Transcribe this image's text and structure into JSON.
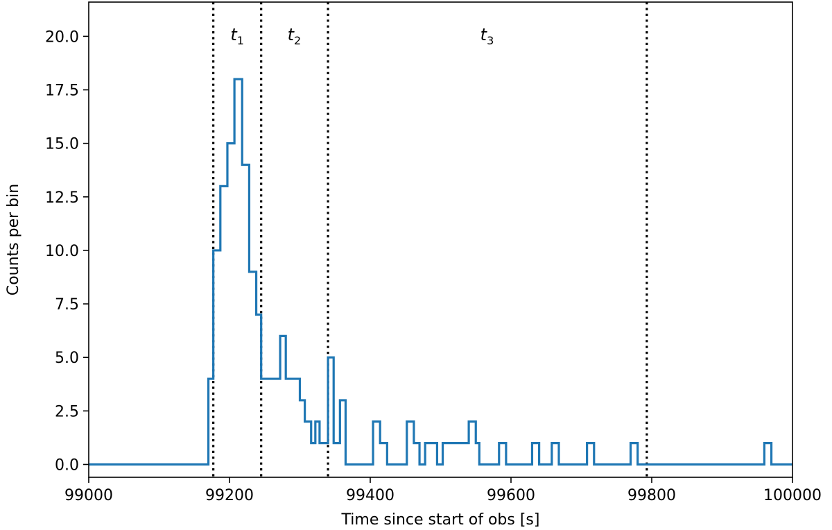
{
  "chart_data": {
    "type": "line",
    "style": "step",
    "xlabel": "Time since start of obs [s]",
    "ylabel": "Counts per bin",
    "xlim": [
      99000,
      100000
    ],
    "ylim": [
      -0.6,
      21.6
    ],
    "xticks": [
      99000,
      99200,
      99400,
      99600,
      99800,
      100000
    ],
    "xtick_labels": [
      "99000",
      "99200",
      "99400",
      "99600",
      "99800",
      "100000"
    ],
    "yticks": [
      0.0,
      2.5,
      5.0,
      7.5,
      10.0,
      12.5,
      15.0,
      17.5,
      20.0
    ],
    "ytick_labels": [
      "0.0",
      "2.5",
      "5.0",
      "7.5",
      "10.0",
      "12.5",
      "15.0",
      "17.5",
      "20.0"
    ],
    "grid": false,
    "series_color": "#1f77b4",
    "bin_width": 6.2,
    "bin_start": 99170,
    "counts": [
      4,
      10,
      13,
      15,
      18,
      14,
      9,
      7,
      4,
      4,
      4,
      6,
      4,
      4,
      3,
      2,
      1,
      2,
      5,
      1,
      3,
      0,
      0,
      0,
      0,
      0,
      0,
      2,
      1,
      0,
      0,
      0,
      2,
      1,
      1,
      0,
      0,
      0,
      1,
      1,
      1,
      1,
      1,
      1,
      2,
      1,
      0,
      0,
      0,
      0,
      0,
      0,
      0,
      1,
      0,
      0,
      0,
      0,
      0,
      0,
      0,
      0,
      0,
      0,
      0,
      0,
      0,
      0,
      0,
      0,
      0,
      0,
      0,
      0,
      0,
      0,
      0,
      1,
      0,
      0,
      0,
      0,
      0,
      0,
      0,
      0,
      0,
      0,
      0,
      0,
      0,
      0,
      1,
      0,
      0,
      0,
      0,
      0,
      0,
      0,
      0,
      0,
      0,
      0,
      0,
      0,
      0,
      0,
      0,
      0,
      0,
      0,
      0,
      0,
      0,
      0,
      0,
      0,
      0,
      0,
      0,
      0,
      0,
      0,
      0,
      0,
      0,
      0,
      0,
      0,
      0,
      0,
      0,
      0,
      0,
      0,
      0,
      0,
      0,
      0,
      0,
      0,
      0,
      0,
      0,
      0,
      0,
      0,
      0,
      0
    ],
    "step_points": [
      [
        99000,
        0
      ],
      [
        99170,
        0
      ],
      [
        99170,
        4
      ],
      [
        99177,
        4
      ],
      [
        99177,
        10
      ],
      [
        99187,
        10
      ],
      [
        99187,
        13
      ],
      [
        99197,
        13
      ],
      [
        99197,
        15
      ],
      [
        99207,
        15
      ],
      [
        99207,
        18
      ],
      [
        99218,
        18
      ],
      [
        99218,
        14
      ],
      [
        99228,
        14
      ],
      [
        99228,
        9
      ],
      [
        99238,
        9
      ],
      [
        99238,
        7
      ],
      [
        99245,
        7
      ],
      [
        99245,
        4
      ],
      [
        99272,
        4
      ],
      [
        99272,
        6
      ],
      [
        99280,
        6
      ],
      [
        99280,
        4
      ],
      [
        99300,
        4
      ],
      [
        99300,
        3
      ],
      [
        99307,
        3
      ],
      [
        99307,
        2
      ],
      [
        99316,
        2
      ],
      [
        99316,
        1
      ],
      [
        99322,
        1
      ],
      [
        99322,
        2
      ],
      [
        99328,
        2
      ],
      [
        99328,
        1
      ],
      [
        99340,
        1
      ],
      [
        99340,
        5
      ],
      [
        99348,
        5
      ],
      [
        99348,
        1
      ],
      [
        99357,
        1
      ],
      [
        99357,
        3
      ],
      [
        99365,
        3
      ],
      [
        99365,
        0
      ],
      [
        99404,
        0
      ],
      [
        99404,
        2
      ],
      [
        99414,
        2
      ],
      [
        99414,
        1
      ],
      [
        99424,
        1
      ],
      [
        99424,
        0
      ],
      [
        99452,
        0
      ],
      [
        99452,
        2
      ],
      [
        99462,
        2
      ],
      [
        99462,
        1
      ],
      [
        99470,
        1
      ],
      [
        99470,
        0
      ],
      [
        99478,
        0
      ],
      [
        99478,
        1
      ],
      [
        99495,
        1
      ],
      [
        99495,
        0
      ],
      [
        99503,
        0
      ],
      [
        99503,
        1
      ],
      [
        99540,
        1
      ],
      [
        99540,
        2
      ],
      [
        99550,
        2
      ],
      [
        99550,
        1
      ],
      [
        99555,
        1
      ],
      [
        99555,
        0
      ],
      [
        99560,
        0
      ],
      [
        99560,
        0
      ],
      [
        99583,
        0
      ],
      [
        99583,
        1
      ],
      [
        99593,
        1
      ],
      [
        99593,
        0
      ],
      [
        99630,
        0
      ],
      [
        99630,
        1
      ],
      [
        99640,
        1
      ],
      [
        99640,
        0
      ],
      [
        99658,
        0
      ],
      [
        99658,
        1
      ],
      [
        99668,
        1
      ],
      [
        99668,
        0
      ],
      [
        99708,
        0
      ],
      [
        99708,
        1
      ],
      [
        99718,
        1
      ],
      [
        99718,
        0
      ],
      [
        99770,
        0
      ],
      [
        99770,
        1
      ],
      [
        99780,
        1
      ],
      [
        99780,
        0
      ],
      [
        99960,
        0
      ],
      [
        99960,
        1
      ],
      [
        99970,
        1
      ],
      [
        99970,
        0
      ],
      [
        100000,
        0
      ]
    ],
    "vlines": [
      99177,
      99245,
      99340,
      99793
    ],
    "regions": [
      {
        "label": "t",
        "sub": "1",
        "x": 99211
      },
      {
        "label": "t",
        "sub": "2",
        "x": 99292
      },
      {
        "label": "t",
        "sub": "3",
        "x": 99566
      }
    ]
  }
}
